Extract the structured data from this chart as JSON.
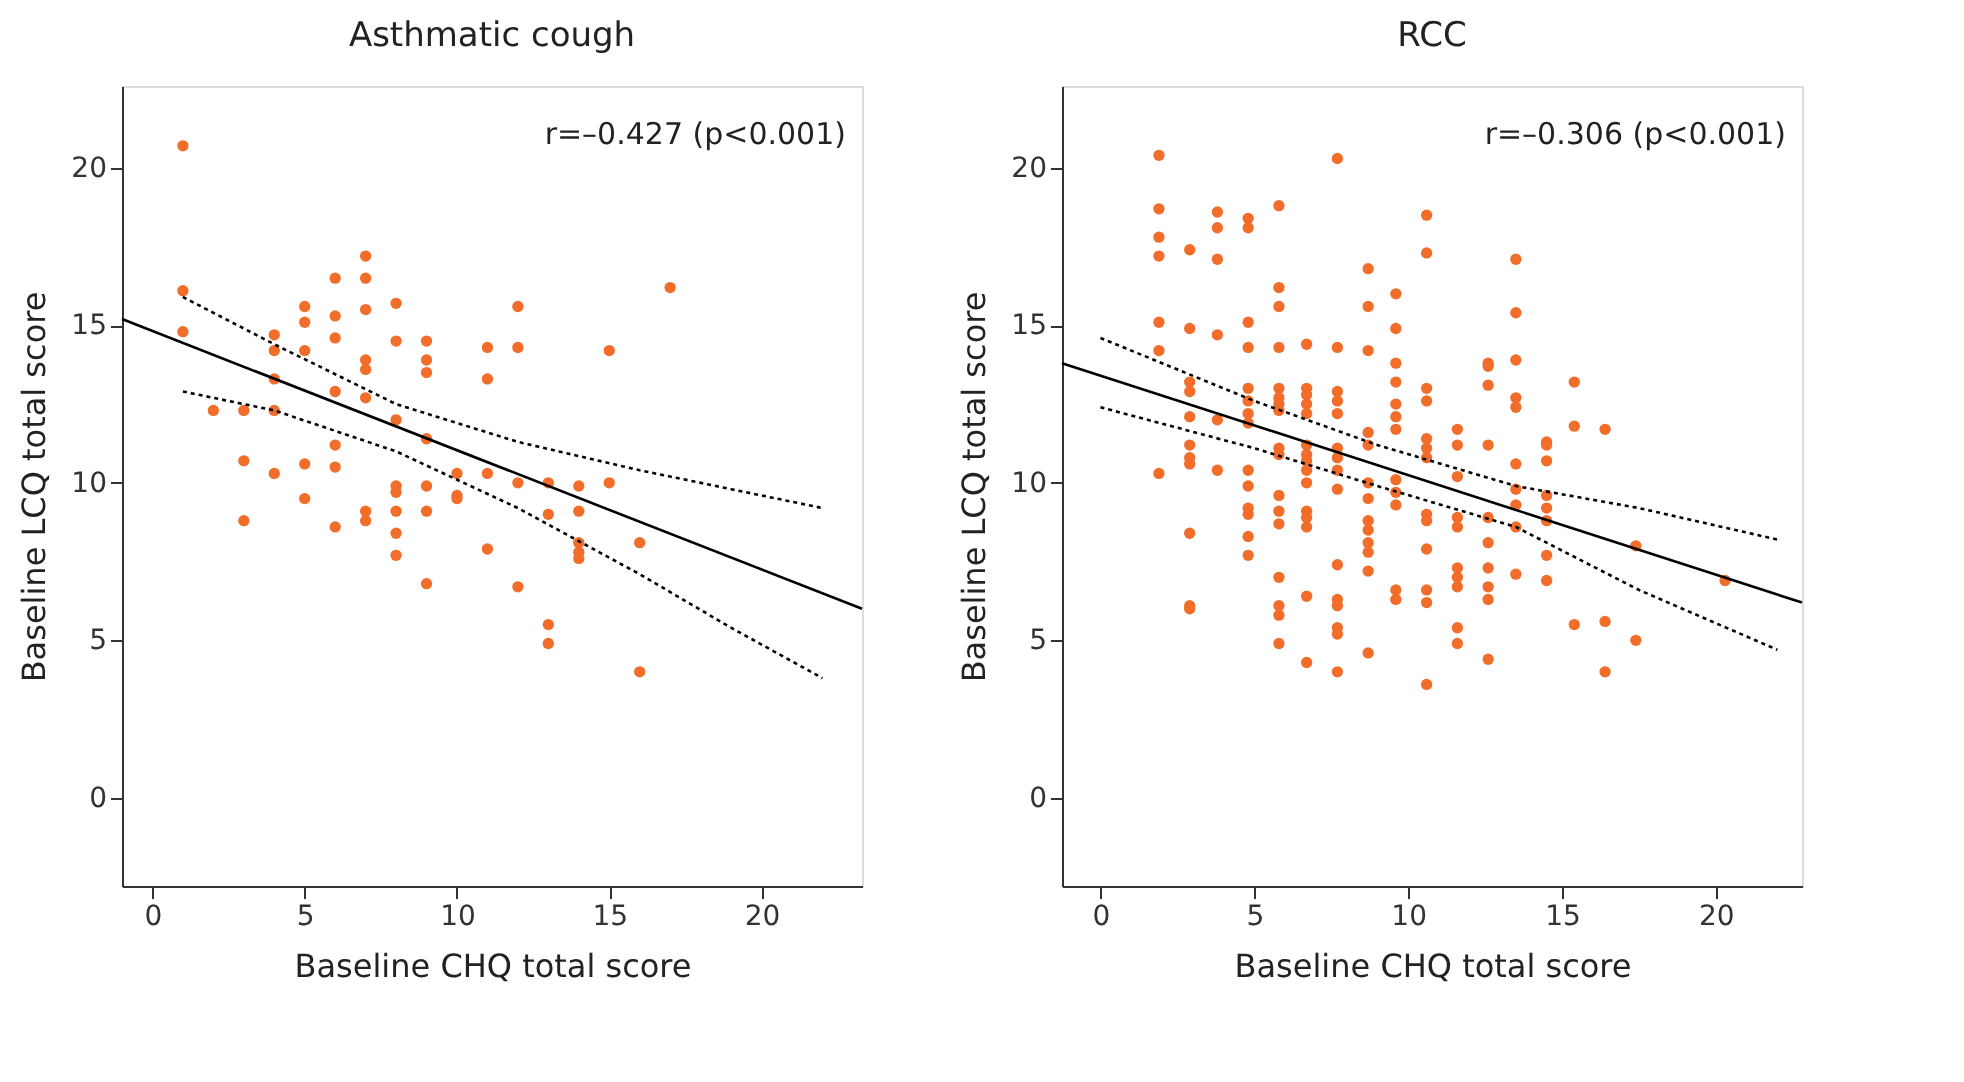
{
  "chart_data": [
    {
      "type": "scatter",
      "title": "Asthmatic cough",
      "xlabel": "Baseline CHQ total score",
      "ylabel": "Baseline LCQ total score",
      "annotations": [
        "r=–0.427 (p<0.001)"
      ],
      "xlim": [
        -1,
        23.3
      ],
      "ylim": [
        -2.8,
        22.6
      ],
      "xticks": [
        0,
        5,
        10,
        15,
        20
      ],
      "yticks": [
        0,
        5,
        10,
        15,
        20
      ],
      "grid": false,
      "series": [
        {
          "marker": "circle",
          "color": "#f26c2a",
          "x": [
            1,
            1,
            1,
            2,
            3,
            3,
            3,
            4,
            4,
            4,
            4,
            4,
            5,
            5,
            5,
            5,
            5,
            6,
            6,
            6,
            6,
            6,
            6,
            6,
            7,
            7,
            7,
            7,
            7,
            7,
            7,
            7,
            8,
            8,
            8,
            8,
            8,
            8,
            8,
            8,
            9,
            9,
            9,
            9,
            9,
            9,
            9,
            10,
            10,
            10,
            11,
            11,
            11,
            11,
            12,
            12,
            12,
            12,
            13,
            13,
            13,
            13,
            14,
            14,
            14,
            14,
            14,
            15,
            15,
            16,
            16,
            17
          ],
          "values": [
            20.7,
            16.1,
            14.8,
            12.3,
            12.3,
            10.7,
            8.8,
            14.7,
            14.2,
            13.3,
            12.3,
            10.3,
            15.6,
            15.1,
            14.2,
            10.6,
            9.5,
            16.5,
            15.3,
            14.6,
            12.9,
            11.2,
            10.5,
            8.6,
            17.2,
            16.5,
            15.5,
            13.9,
            13.6,
            12.7,
            9.1,
            8.8,
            15.7,
            14.5,
            12.0,
            9.9,
            9.7,
            9.1,
            8.4,
            7.7,
            14.5,
            13.9,
            13.5,
            11.4,
            9.9,
            9.1,
            6.8,
            10.3,
            9.6,
            9.5,
            14.3,
            13.3,
            10.3,
            7.9,
            15.6,
            14.3,
            10.0,
            6.7,
            10.0,
            9.0,
            5.5,
            4.9,
            9.9,
            9.1,
            8.1,
            7.8,
            7.6,
            14.2,
            10.0,
            8.1,
            4.0,
            16.2
          ]
        },
        {
          "type": "line",
          "marker": "none",
          "color": "#000000",
          "line_style": "solid",
          "x": [
            -1,
            23.3
          ],
          "values": [
            15.2,
            6.0
          ]
        },
        {
          "type": "line",
          "marker": "none",
          "color": "#000000",
          "line_style": "dotted",
          "x": [
            1,
            4,
            8,
            12,
            16,
            19,
            22
          ],
          "values": [
            15.9,
            14.4,
            12.5,
            11.3,
            10.4,
            9.8,
            9.2
          ]
        },
        {
          "type": "line",
          "marker": "none",
          "color": "#000000",
          "line_style": "dotted",
          "x": [
            1,
            4,
            8,
            12,
            16,
            19,
            22
          ],
          "values": [
            12.9,
            12.3,
            11.0,
            9.2,
            7.1,
            5.4,
            3.8
          ]
        }
      ]
    },
    {
      "type": "scatter",
      "title": "RCC",
      "xlabel": "Baseline CHQ total score",
      "ylabel": "Baseline LCQ total score",
      "annotations": [
        "r=–0.306 (p<0.001)"
      ],
      "xlim": [
        -1.25,
        22.8
      ],
      "ylim": [
        -2.8,
        22.6
      ],
      "xticks": [
        0,
        5,
        10,
        15,
        20
      ],
      "yticks": [
        0,
        5,
        10,
        15,
        20
      ],
      "grid": false,
      "series": [
        {
          "marker": "circle",
          "color": "#f26c2a",
          "x": [
            1.9,
            1.9,
            1.9,
            1.9,
            1.9,
            1.9,
            1.9,
            2.9,
            2.9,
            2.9,
            2.9,
            2.9,
            2.9,
            2.9,
            2.9,
            2.9,
            2.9,
            2.9,
            3.8,
            3.8,
            3.8,
            3.8,
            3.8,
            3.8,
            4.8,
            4.8,
            4.8,
            4.8,
            4.8,
            4.8,
            4.8,
            4.8,
            4.8,
            4.8,
            4.8,
            4.8,
            4.8,
            4.8,
            5.8,
            5.8,
            5.8,
            5.8,
            5.8,
            5.8,
            5.8,
            5.8,
            5.8,
            5.8,
            5.8,
            5.8,
            5.8,
            5.8,
            5.8,
            5.8,
            5.8,
            6.7,
            6.7,
            6.7,
            6.7,
            6.7,
            6.7,
            6.7,
            6.7,
            6.7,
            6.7,
            6.7,
            6.7,
            6.7,
            6.7,
            6.7,
            7.7,
            7.7,
            7.7,
            7.7,
            7.7,
            7.7,
            7.7,
            7.7,
            7.7,
            7.7,
            7.7,
            7.7,
            7.7,
            7.7,
            7.7,
            8.7,
            8.7,
            8.7,
            8.7,
            8.7,
            8.7,
            8.7,
            8.7,
            8.7,
            8.7,
            8.7,
            8.7,
            8.7,
            9.6,
            9.6,
            9.6,
            9.6,
            9.6,
            9.6,
            9.6,
            9.6,
            9.6,
            9.6,
            9.6,
            9.6,
            10.6,
            10.6,
            10.6,
            10.6,
            10.6,
            10.6,
            10.6,
            10.6,
            10.6,
            10.6,
            10.6,
            10.6,
            10.6,
            11.6,
            11.6,
            11.6,
            11.6,
            11.6,
            11.6,
            11.6,
            11.6,
            11.6,
            11.6,
            12.6,
            12.6,
            12.6,
            12.6,
            12.6,
            12.6,
            12.6,
            12.6,
            12.6,
            12.6,
            13.5,
            13.5,
            13.5,
            13.5,
            13.5,
            13.5,
            13.5,
            13.5,
            13.5,
            13.5,
            14.5,
            14.5,
            14.5,
            14.5,
            14.5,
            14.5,
            14.5,
            14.5,
            15.4,
            15.4,
            15.4,
            16.4,
            16.4,
            16.4,
            17.4,
            17.4,
            20.3
          ],
          "values": [
            20.4,
            18.7,
            17.8,
            17.2,
            15.1,
            14.2,
            10.3,
            17.4,
            14.9,
            13.2,
            12.9,
            12.1,
            11.2,
            10.8,
            10.6,
            8.4,
            6.1,
            6.0,
            18.6,
            18.1,
            17.1,
            14.7,
            12.0,
            10.4,
            18.4,
            18.1,
            15.1,
            14.3,
            13.0,
            12.6,
            12.2,
            11.9,
            10.4,
            9.9,
            9.2,
            9.0,
            8.3,
            7.7,
            18.8,
            16.2,
            15.6,
            14.3,
            13.0,
            12.7,
            12.5,
            12.3,
            11.1,
            10.9,
            9.6,
            9.1,
            8.7,
            7.0,
            6.1,
            5.8,
            4.9,
            14.4,
            13.0,
            12.8,
            12.5,
            12.2,
            11.2,
            10.9,
            10.7,
            10.4,
            10.0,
            9.1,
            8.9,
            8.6,
            6.4,
            4.3,
            20.3,
            14.3,
            12.9,
            12.6,
            12.2,
            11.1,
            10.8,
            10.4,
            9.8,
            7.4,
            6.3,
            6.1,
            5.4,
            5.2,
            4.0,
            16.8,
            15.6,
            14.2,
            11.6,
            11.2,
            10.0,
            9.5,
            8.8,
            8.5,
            8.1,
            7.8,
            7.2,
            4.6,
            16.0,
            14.9,
            13.8,
            13.2,
            12.5,
            12.1,
            11.7,
            10.1,
            9.7,
            9.3,
            6.6,
            6.3,
            18.5,
            17.3,
            13.0,
            12.6,
            11.4,
            11.1,
            10.8,
            9.0,
            8.8,
            7.9,
            6.6,
            6.2,
            3.6,
            11.7,
            11.2,
            10.2,
            8.9,
            8.6,
            7.3,
            7.0,
            6.7,
            5.4,
            4.9,
            13.8,
            13.7,
            13.1,
            11.2,
            8.9,
            8.1,
            7.3,
            6.7,
            6.3,
            4.4,
            17.1,
            15.4,
            13.9,
            12.7,
            12.4,
            10.6,
            9.8,
            9.3,
            8.6,
            7.1,
            11.3,
            11.2,
            10.7,
            9.6,
            9.2,
            8.8,
            7.7,
            6.9,
            13.2,
            11.8,
            5.5,
            11.7,
            5.6,
            4.0,
            8.0,
            5.0,
            6.9
          ]
        },
        {
          "type": "line",
          "marker": "none",
          "color": "#000000",
          "line_style": "solid",
          "x": [
            -1.25,
            22.8
          ],
          "values": [
            13.8,
            6.2
          ]
        },
        {
          "type": "line",
          "marker": "none",
          "color": "#000000",
          "line_style": "dotted",
          "x": [
            0,
            5,
            9,
            13.5,
            17.5,
            22
          ],
          "values": [
            14.6,
            12.6,
            11.2,
            9.9,
            9.2,
            8.2
          ]
        },
        {
          "type": "line",
          "marker": "none",
          "color": "#000000",
          "line_style": "dotted",
          "x": [
            0,
            5,
            9,
            13.5,
            17.5,
            22
          ],
          "values": [
            12.4,
            11.1,
            9.9,
            8.6,
            6.6,
            4.7
          ]
        }
      ]
    }
  ]
}
